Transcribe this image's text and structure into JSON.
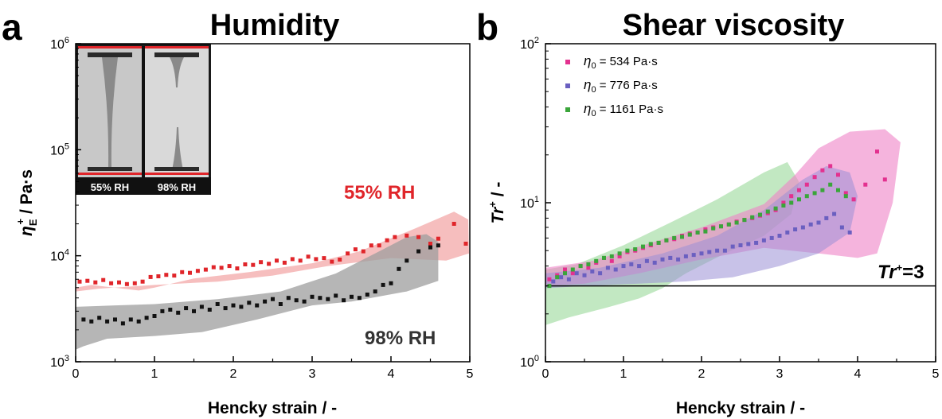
{
  "colors": {
    "red_series": "#e0252a",
    "black_series": "#111111",
    "pink_series": "#e3318f",
    "blue_series": "#6a5fc0",
    "green_series": "#3aa53a",
    "red_band": "#f2a3a3",
    "grey_band": "#9e9e9e",
    "pink_band": "#ee82c6",
    "blue_band": "#9b8fd6",
    "green_band": "#9ad89a"
  },
  "panel_a": {
    "letter": "a",
    "title": "Humidity",
    "ylabel_main": "η",
    "ylabel_sup": "+",
    "ylabel_sub": "E",
    "ylabel_rest": " / Pa·s",
    "xlabel": "Hencky strain / -",
    "annotation_55": "55% RH",
    "annotation_98": "98% RH",
    "inset_left_caption": "55% RH",
    "inset_right_caption": "98% RH"
  },
  "panel_b": {
    "letter": "b",
    "title": "Shear viscosity",
    "ylabel_main": "Tr",
    "ylabel_sup": "+",
    "ylabel_rest": " / -",
    "xlabel": "Hencky strain / -",
    "threshold_label_main": "Tr",
    "threshold_label_sup": "+",
    "threshold_label_rest": "=3"
  },
  "chart_data": [
    {
      "type": "scatter",
      "title": "Humidity",
      "xlabel": "Hencky strain / -",
      "ylabel": "η_E^+ / Pa·s",
      "xlim": [
        0,
        5
      ],
      "ylim": [
        1000,
        1000000
      ],
      "yscale": "log",
      "x_ticks": [
        0,
        1,
        2,
        3,
        4,
        5
      ],
      "x_tick_labels": [
        "0",
        "1",
        "2",
        "3",
        "4",
        "5"
      ],
      "y_ticks": [
        1000,
        10000,
        100000,
        1000000
      ],
      "y_tick_labels": [
        "10^3",
        "10^4",
        "10^5",
        "10^6"
      ],
      "grid": false,
      "series": [
        {
          "name": "55% RH",
          "color": "#e0252a",
          "x": [
            0.05,
            0.15,
            0.25,
            0.35,
            0.45,
            0.55,
            0.65,
            0.75,
            0.85,
            0.95,
            1.05,
            1.15,
            1.25,
            1.35,
            1.45,
            1.55,
            1.65,
            1.75,
            1.85,
            1.95,
            2.05,
            2.15,
            2.25,
            2.35,
            2.45,
            2.55,
            2.65,
            2.75,
            2.85,
            2.95,
            3.05,
            3.15,
            3.25,
            3.35,
            3.45,
            3.55,
            3.65,
            3.75,
            3.85,
            3.95,
            4.05,
            4.2,
            4.35,
            4.5,
            4.6,
            4.8,
            4.95
          ],
          "y": [
            5700,
            5800,
            5600,
            5900,
            5500,
            5600,
            5400,
            5500,
            5700,
            6300,
            6400,
            6600,
            6500,
            7000,
            6900,
            7200,
            7400,
            7800,
            7700,
            8000,
            7600,
            8300,
            8200,
            8700,
            8400,
            9000,
            8600,
            9300,
            9000,
            9800,
            9300,
            9500,
            8800,
            9200,
            10500,
            11500,
            11000,
            12500,
            12500,
            14000,
            15000,
            15500,
            15000,
            13000,
            14500,
            20000,
            13000
          ]
        },
        {
          "name": "98% RH",
          "color": "#111111",
          "x": [
            0.1,
            0.2,
            0.3,
            0.4,
            0.5,
            0.6,
            0.7,
            0.8,
            0.9,
            1.0,
            1.1,
            1.2,
            1.3,
            1.4,
            1.5,
            1.6,
            1.7,
            1.8,
            1.9,
            2.0,
            2.1,
            2.2,
            2.3,
            2.4,
            2.5,
            2.6,
            2.7,
            2.8,
            2.9,
            3.0,
            3.1,
            3.2,
            3.3,
            3.4,
            3.5,
            3.6,
            3.7,
            3.8,
            3.9,
            4.0,
            4.1,
            4.2,
            4.35,
            4.5,
            4.6
          ],
          "y": [
            2500,
            2400,
            2600,
            2400,
            2500,
            2300,
            2500,
            2400,
            2600,
            2700,
            3000,
            3100,
            2900,
            3200,
            3000,
            3300,
            3100,
            3500,
            3200,
            3400,
            3300,
            3600,
            3400,
            3700,
            3900,
            3500,
            4000,
            3800,
            3700,
            4100,
            4000,
            3900,
            4200,
            3800,
            4100,
            4000,
            4300,
            4600,
            5300,
            5500,
            7500,
            9000,
            11000,
            12000,
            12500
          ]
        }
      ],
      "bands": [
        {
          "name": "55% RH",
          "color": "#f2a3a3"
        },
        {
          "name": "98% RH",
          "color": "#9e9e9e"
        }
      ],
      "annotations": [
        "55% RH",
        "98% RH"
      ]
    },
    {
      "type": "scatter",
      "title": "Shear viscosity",
      "xlabel": "Hencky strain / -",
      "ylabel": "Tr^+ / -",
      "xlim": [
        0,
        5
      ],
      "ylim": [
        1,
        100
      ],
      "yscale": "log",
      "x_ticks": [
        0,
        1,
        2,
        3,
        4,
        5
      ],
      "x_tick_labels": [
        "0",
        "1",
        "2",
        "3",
        "4",
        "5"
      ],
      "y_ticks": [
        1,
        10,
        100
      ],
      "y_tick_labels": [
        "10^0",
        "10^1",
        "10^2"
      ],
      "grid": false,
      "legend_position": "top-left",
      "reference_line": {
        "y": 3,
        "label": "Tr+=3"
      },
      "series": [
        {
          "name": "η0 = 534 Pa·s",
          "legend_main": "η",
          "legend_sub": "0",
          "legend_rest": " = 534 Pa·s",
          "color": "#e3318f",
          "x": [
            0.05,
            0.15,
            0.25,
            0.35,
            0.45,
            0.55,
            0.65,
            0.75,
            0.85,
            0.95,
            1.05,
            1.15,
            1.25,
            1.35,
            1.45,
            1.55,
            1.65,
            1.75,
            1.85,
            1.95,
            2.05,
            2.15,
            2.25,
            2.35,
            2.45,
            2.55,
            2.65,
            2.75,
            2.85,
            2.95,
            3.05,
            3.15,
            3.25,
            3.35,
            3.45,
            3.55,
            3.65,
            3.75,
            3.85,
            3.95,
            4.1,
            4.25,
            4.35
          ],
          "y": [
            3.3,
            3.5,
            3.8,
            3.6,
            4.0,
            3.9,
            4.2,
            4.5,
            4.3,
            4.6,
            4.9,
            5.0,
            5.2,
            5.4,
            5.6,
            5.8,
            5.9,
            6.2,
            6.4,
            6.5,
            6.8,
            7.0,
            7.1,
            7.3,
            7.6,
            7.8,
            8.0,
            8.3,
            8.6,
            9.0,
            10.0,
            11.0,
            12.0,
            13.0,
            14.5,
            16.0,
            17.0,
            15.0,
            11.5,
            10.5,
            13.0,
            21.0,
            14.0
          ]
        },
        {
          "name": "η0 = 776 Pa·s",
          "legend_main": "η",
          "legend_sub": "0",
          "legend_rest": " = 776 Pa·s",
          "color": "#6a5fc0",
          "x": [
            0.1,
            0.2,
            0.3,
            0.4,
            0.5,
            0.6,
            0.7,
            0.8,
            0.9,
            1.0,
            1.1,
            1.2,
            1.3,
            1.4,
            1.5,
            1.6,
            1.7,
            1.8,
            1.9,
            2.0,
            2.1,
            2.2,
            2.3,
            2.4,
            2.5,
            2.6,
            2.7,
            2.8,
            2.9,
            3.0,
            3.1,
            3.2,
            3.3,
            3.4,
            3.5,
            3.6,
            3.7,
            3.8,
            3.9
          ],
          "y": [
            3.2,
            3.4,
            3.3,
            3.6,
            3.5,
            3.7,
            3.6,
            3.9,
            3.8,
            4.0,
            4.1,
            4.0,
            4.3,
            4.2,
            4.4,
            4.5,
            4.4,
            4.6,
            4.7,
            4.8,
            4.9,
            5.0,
            5.0,
            5.3,
            5.4,
            5.5,
            5.6,
            5.8,
            6.0,
            6.2,
            6.5,
            6.8,
            7.0,
            7.3,
            7.5,
            8.0,
            8.5,
            7.0,
            6.5
          ]
        },
        {
          "name": "η0 = 1161 Pa·s",
          "legend_main": "η",
          "legend_sub": "0",
          "legend_rest": " = 1161 Pa·s",
          "color": "#3aa53a",
          "x": [
            0.05,
            0.15,
            0.25,
            0.35,
            0.45,
            0.55,
            0.65,
            0.75,
            0.85,
            0.95,
            1.05,
            1.15,
            1.25,
            1.35,
            1.45,
            1.55,
            1.65,
            1.75,
            1.85,
            1.95,
            2.05,
            2.15,
            2.25,
            2.35,
            2.45,
            2.55,
            2.65,
            2.75,
            2.85,
            2.95,
            3.05,
            3.15,
            3.25,
            3.35,
            3.45,
            3.55,
            3.65,
            3.75,
            3.85
          ],
          "y": [
            3.0,
            3.4,
            3.6,
            3.8,
            4.0,
            4.1,
            4.3,
            4.5,
            4.6,
            4.8,
            5.0,
            5.1,
            5.3,
            5.5,
            5.6,
            5.8,
            6.0,
            6.1,
            6.3,
            6.5,
            6.6,
            6.9,
            7.1,
            7.3,
            7.5,
            7.8,
            8.1,
            8.4,
            8.8,
            9.2,
            9.6,
            10.0,
            10.5,
            11.0,
            11.5,
            12.0,
            13.0,
            12.0,
            11.0
          ]
        }
      ],
      "bands": [
        {
          "name": "η0 = 534 Pa·s",
          "color": "#ee82c6"
        },
        {
          "name": "η0 = 776 Pa·s",
          "color": "#9b8fd6"
        },
        {
          "name": "η0 = 1161 Pa·s",
          "color": "#9ad89a"
        }
      ]
    }
  ]
}
